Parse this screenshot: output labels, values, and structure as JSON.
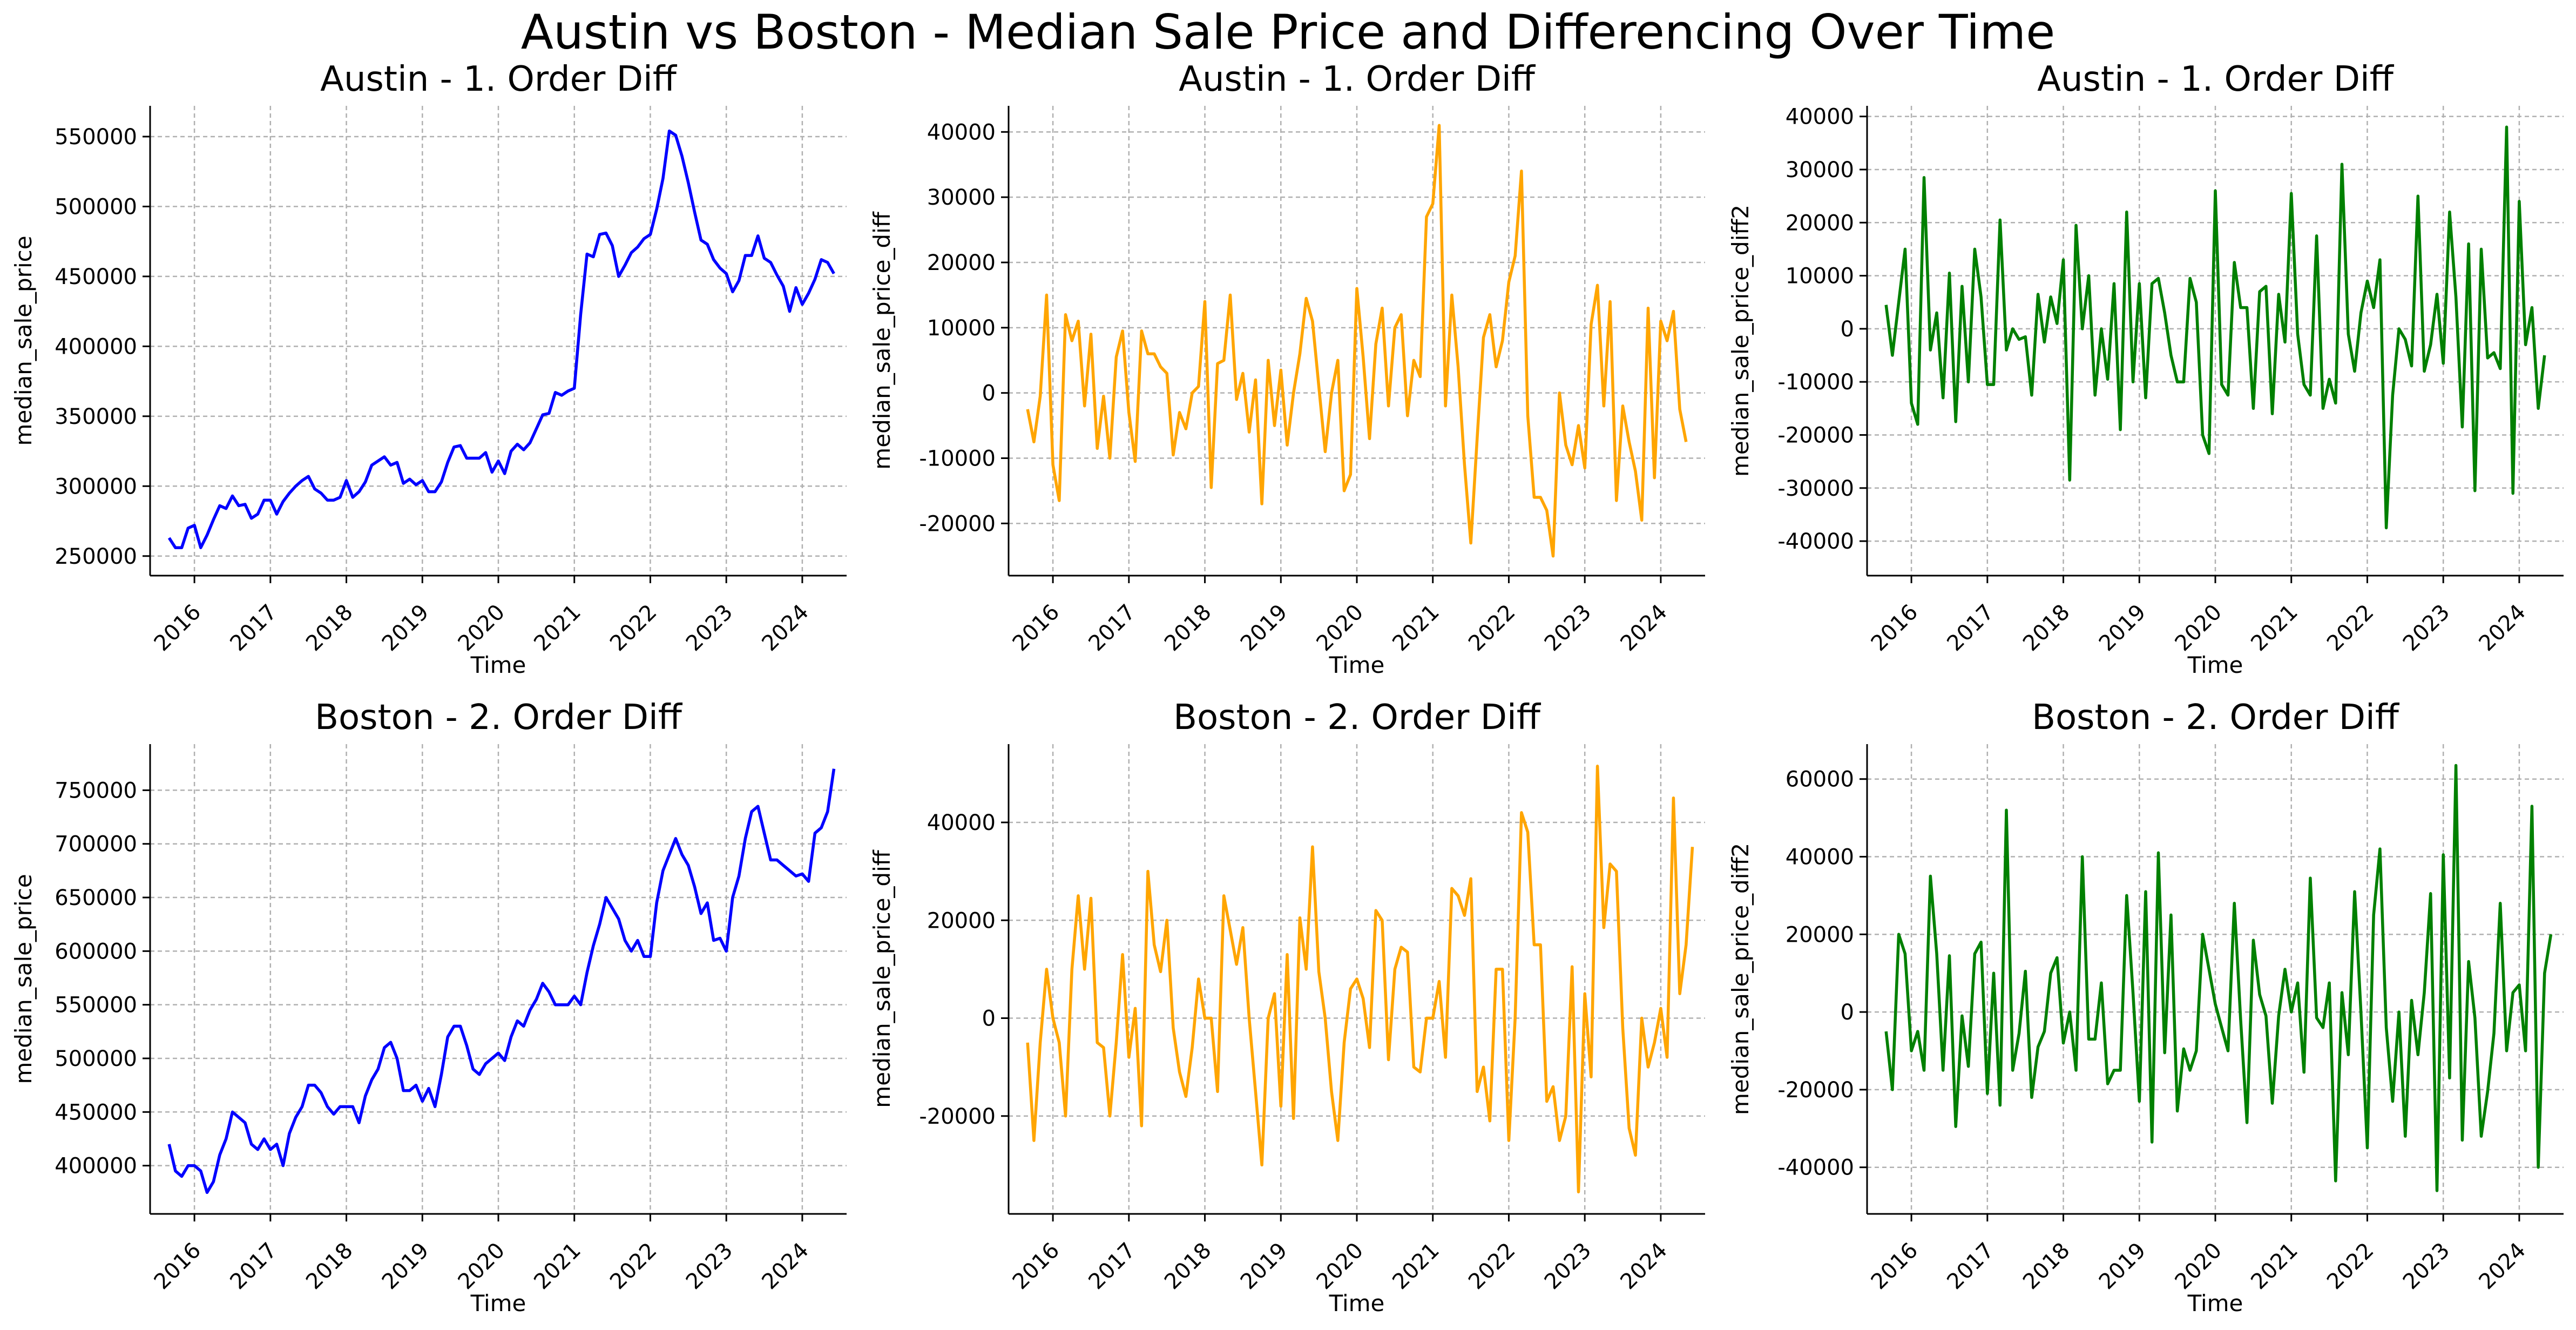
{
  "figure": {
    "suptitle": "Austin vs Boston - Median Sale Price and Differencing Over Time"
  },
  "colors": {
    "level": "#0000ff",
    "diff1": "#ffa500",
    "diff2": "#008000",
    "grid": "#b0b0b0",
    "axis": "#000000"
  },
  "chart_data": [
    {
      "type": "line",
      "title": "Austin - 1. Order Diff",
      "xlabel": "Time",
      "ylabel": "median_sale_price",
      "x_tick_labels": [
        "2016",
        "2017",
        "2018",
        "2019",
        "2020",
        "2021",
        "2022",
        "2023",
        "2024"
      ],
      "x_range": [
        "2015-06-01",
        "2024-08-01"
      ],
      "ylim": [
        236000,
        572000
      ],
      "y_ticks": [
        250000,
        300000,
        350000,
        400000,
        450000,
        500000,
        550000
      ],
      "grid": true,
      "legend": "none",
      "series": [
        {
          "color": "#0000ff",
          "x_start": "2015-09",
          "frequency": "monthly",
          "values": [
            263000,
            256000,
            256000,
            270000,
            272000,
            256000,
            265000,
            276000,
            286000,
            284000,
            293000,
            286000,
            287000,
            277000,
            280000,
            290000,
            290000,
            280000,
            289000,
            295000,
            300000,
            304000,
            307000,
            298000,
            295000,
            290000,
            290000,
            292000,
            304000,
            292000,
            296000,
            303000,
            315000,
            318000,
            321000,
            315000,
            317000,
            302000,
            305000,
            301000,
            304000,
            296000,
            296000,
            303000,
            317000,
            328000,
            329000,
            320000,
            320000,
            320000,
            324000,
            310000,
            318000,
            309000,
            325000,
            330000,
            326000,
            331000,
            341000,
            351000,
            352000,
            367000,
            365000,
            368000,
            370000,
            423000,
            466000,
            464000,
            480000,
            481000,
            472000,
            450000,
            458000,
            467000,
            471000,
            477000,
            480000,
            498000,
            520000,
            554000,
            551000,
            536000,
            517000,
            496000,
            476000,
            473000,
            462000,
            456000,
            452000,
            439000,
            447000,
            465000,
            465000,
            479000,
            463000,
            460000,
            451000,
            443000,
            425000,
            442000,
            430000,
            438000,
            448000,
            462000,
            460000,
            452000
          ]
        }
      ]
    },
    {
      "type": "line",
      "title": "Austin - 1. Order Diff",
      "xlabel": "Time",
      "ylabel": "median_sale_price_diff",
      "x_tick_labels": [
        "2016",
        "2017",
        "2018",
        "2019",
        "2020",
        "2021",
        "2022",
        "2023",
        "2024"
      ],
      "x_range": [
        "2015-06-01",
        "2024-08-01"
      ],
      "ylim": [
        -28000,
        44000
      ],
      "y_ticks": [
        -20000,
        -10000,
        0,
        10000,
        20000,
        30000,
        40000
      ],
      "grid": true,
      "legend": "none",
      "series": [
        {
          "color": "#ffa500",
          "x_start": "2015-09",
          "frequency": "monthly",
          "values": [
            -2500,
            -7500,
            -500,
            15000,
            -11000,
            -16500,
            12000,
            8000,
            11000,
            -2000,
            9000,
            -8500,
            -500,
            -10000,
            5500,
            9500,
            -3000,
            -10500,
            9500,
            6000,
            6000,
            4000,
            3000,
            -9500,
            -3000,
            -5500,
            0,
            1000,
            14000,
            -14500,
            4500,
            5000,
            15000,
            -1000,
            3000,
            -6000,
            2000,
            -17000,
            5000,
            -5000,
            3500,
            -8000,
            0,
            6000,
            14500,
            11000,
            1000,
            -9000,
            0,
            5000,
            -15000,
            -12500,
            16000,
            5500,
            -7000,
            7500,
            13000,
            -2000,
            10000,
            12000,
            -3500,
            5000,
            2500,
            27000,
            29000,
            41000,
            -2000,
            15000,
            4000,
            -11000,
            -23000,
            -7000,
            8500,
            12000,
            4000,
            8000,
            17000,
            21000,
            34000,
            -3500,
            -16000,
            -16000,
            -18000,
            -25000,
            0,
            -8000,
            -11000,
            -5000,
            -11500,
            10500,
            16500,
            -2000,
            14000,
            -16500,
            -2000,
            -7500,
            -12000,
            -19500,
            13000,
            -13000,
            11000,
            8000,
            12500,
            -2500,
            -7500
          ]
        }
      ]
    },
    {
      "type": "line",
      "title": "Austin - 1. Order Diff",
      "xlabel": "Time",
      "ylabel": "median_sale_price_diff2",
      "x_tick_labels": [
        "2016",
        "2017",
        "2018",
        "2019",
        "2020",
        "2021",
        "2022",
        "2023",
        "2024"
      ],
      "x_range": [
        "2015-06-01",
        "2024-08-01"
      ],
      "ylim": [
        -46500,
        42000
      ],
      "y_ticks": [
        -40000,
        -30000,
        -20000,
        -10000,
        0,
        10000,
        20000,
        30000,
        40000
      ],
      "grid": true,
      "legend": "none",
      "series": [
        {
          "color": "#008000",
          "x_start": "2015-09",
          "frequency": "monthly",
          "values": [
            4500,
            -5000,
            5000,
            15000,
            -14000,
            -18000,
            28500,
            -4000,
            3000,
            -13000,
            10500,
            -17500,
            8000,
            -10000,
            15000,
            6000,
            -10500,
            -10500,
            20500,
            -4000,
            0,
            -2000,
            -1500,
            -12500,
            6500,
            -2500,
            6000,
            1000,
            13000,
            -28500,
            19500,
            0,
            10000,
            -12500,
            0,
            -9500,
            8500,
            -19000,
            22000,
            -10000,
            8500,
            -13000,
            8500,
            9500,
            3000,
            -5000,
            -10000,
            -10000,
            9500,
            5000,
            -20000,
            -23500,
            26000,
            -10500,
            -12500,
            12500,
            4000,
            4000,
            -15000,
            7000,
            8000,
            -16000,
            6500,
            -2500,
            25500,
            -1000,
            -10500,
            -12500,
            17500,
            -15000,
            -9500,
            -14000,
            31000,
            -1000,
            -8000,
            3000,
            9000,
            4000,
            13000,
            -37500,
            -12500,
            0,
            -2000,
            -7000,
            25000,
            -8000,
            -3000,
            6500,
            -6500,
            22000,
            6000,
            -18500,
            16000,
            -30500,
            15000,
            -5500,
            -4500,
            -7500,
            38000,
            -31000,
            24000,
            -3000,
            4000,
            -15000,
            -5000
          ]
        }
      ]
    },
    {
      "type": "line",
      "title": "Boston - 2. Order Diff",
      "xlabel": "Time",
      "ylabel": "median_sale_price",
      "x_tick_labels": [
        "2016",
        "2017",
        "2018",
        "2019",
        "2020",
        "2021",
        "2022",
        "2023",
        "2024"
      ],
      "x_range": [
        "2015-06-01",
        "2024-08-01"
      ],
      "ylim": [
        355000,
        793000
      ],
      "y_ticks": [
        400000,
        450000,
        500000,
        550000,
        600000,
        650000,
        700000,
        750000
      ],
      "grid": true,
      "legend": "none",
      "series": [
        {
          "color": "#0000ff",
          "x_start": "2015-09",
          "frequency": "monthly",
          "values": [
            420000,
            395000,
            390000,
            400000,
            400000,
            395000,
            375000,
            385000,
            410000,
            425000,
            450000,
            445000,
            440000,
            420000,
            415000,
            425000,
            415000,
            420000,
            400000,
            430000,
            445000,
            455000,
            475000,
            475000,
            468000,
            455000,
            448000,
            455000,
            455000,
            455000,
            440000,
            465000,
            480000,
            490000,
            510000,
            515000,
            500000,
            470000,
            470000,
            475000,
            460000,
            472000,
            455000,
            485000,
            520000,
            530000,
            530000,
            512000,
            490000,
            485000,
            495000,
            500000,
            505000,
            498000,
            520000,
            535000,
            530000,
            545000,
            555000,
            570000,
            562000,
            550000,
            550000,
            550000,
            558000,
            550000,
            580000,
            605000,
            625000,
            650000,
            640000,
            630000,
            610000,
            600000,
            610000,
            595000,
            595000,
            645000,
            675000,
            690000,
            705000,
            690000,
            680000,
            660000,
            635000,
            645000,
            610000,
            612000,
            600000,
            650000,
            670000,
            705000,
            730000,
            735000,
            710000,
            685000,
            685000,
            680000,
            675000,
            670000,
            672000,
            665000,
            710000,
            715000,
            730000,
            770000
          ]
        }
      ]
    },
    {
      "type": "line",
      "title": "Boston - 2. Order Diff",
      "xlabel": "Time",
      "ylabel": "median_sale_price_diff",
      "x_tick_labels": [
        "2016",
        "2017",
        "2018",
        "2019",
        "2020",
        "2021",
        "2022",
        "2023",
        "2024"
      ],
      "x_range": [
        "2015-06-01",
        "2024-08-01"
      ],
      "ylim": [
        -40000,
        56000
      ],
      "y_ticks": [
        -20000,
        0,
        20000,
        40000
      ],
      "grid": true,
      "legend": "none",
      "series": [
        {
          "color": "#ffa500",
          "x_start": "2015-09",
          "frequency": "monthly",
          "values": [
            -5000,
            -25000,
            -5000,
            10000,
            0,
            -5000,
            -20000,
            10000,
            25000,
            10000,
            24500,
            -5000,
            -6000,
            -20000,
            -5000,
            13000,
            -8000,
            2000,
            -22000,
            30000,
            15000,
            9500,
            20000,
            -2000,
            -11000,
            -16000,
            -6000,
            8000,
            0,
            0,
            -15000,
            25000,
            18000,
            11000,
            18500,
            0,
            -15000,
            -30000,
            0,
            5000,
            -18000,
            13000,
            -20500,
            20500,
            10000,
            35000,
            9500,
            0,
            -15000,
            -25000,
            -5000,
            6000,
            8000,
            4000,
            -6000,
            22000,
            20000,
            -8500,
            10000,
            14500,
            13500,
            -10000,
            -11000,
            0,
            0,
            7500,
            -8000,
            26500,
            25000,
            21000,
            28500,
            -15000,
            -10000,
            -21000,
            10000,
            10000,
            -25000,
            0,
            42000,
            38000,
            15000,
            15000,
            -17000,
            -14000,
            -25000,
            -20000,
            10500,
            -35500,
            5000,
            -12000,
            51500,
            18500,
            31500,
            30000,
            -2000,
            -22500,
            -28000,
            0,
            -10000,
            -5000,
            2000,
            -8000,
            45000,
            5000,
            15000,
            35000
          ]
        }
      ]
    },
    {
      "type": "line",
      "title": "Boston - 2. Order Diff",
      "xlabel": "Time",
      "ylabel": "median_sale_price_diff2",
      "x_tick_labels": [
        "2016",
        "2017",
        "2018",
        "2019",
        "2020",
        "2021",
        "2022",
        "2023",
        "2024"
      ],
      "x_range": [
        "2015-06-01",
        "2024-08-01"
      ],
      "ylim": [
        -52000,
        69000
      ],
      "y_ticks": [
        -40000,
        -20000,
        0,
        20000,
        40000,
        60000
      ],
      "grid": true,
      "legend": "none",
      "series": [
        {
          "color": "#008000",
          "x_start": "2015-09",
          "frequency": "monthly",
          "values": [
            -5000,
            -20000,
            20000,
            15000,
            -10000,
            -5000,
            -15000,
            35000,
            15000,
            -15000,
            14500,
            -29500,
            -1000,
            -14000,
            15000,
            18000,
            -21000,
            10000,
            -24000,
            52000,
            -15000,
            -5500,
            10500,
            -22000,
            -9000,
            -5000,
            10000,
            14000,
            -8000,
            0,
            -15000,
            40000,
            -7000,
            -7000,
            7500,
            -18500,
            -15000,
            -15000,
            30000,
            5000,
            -23000,
            31000,
            -33500,
            41000,
            -10500,
            25000,
            -25500,
            -9500,
            -15000,
            -10000,
            20000,
            11000,
            2000,
            -4000,
            -10000,
            28000,
            -2000,
            -28500,
            18500,
            4500,
            -1000,
            -23500,
            -1000,
            11000,
            0,
            7500,
            -15500,
            34500,
            -1500,
            -4000,
            7500,
            -43500,
            5000,
            -11000,
            31000,
            0,
            -35000,
            25000,
            42000,
            -4000,
            -23000,
            0,
            -32000,
            3000,
            -11000,
            5000,
            30500,
            -46000,
            40500,
            -17000,
            63500,
            -33000,
            13000,
            -1500,
            -32000,
            -20500,
            -5500,
            28000,
            -10000,
            5000,
            7000,
            -10000,
            53000,
            -40000,
            10000,
            20000
          ]
        }
      ]
    }
  ]
}
